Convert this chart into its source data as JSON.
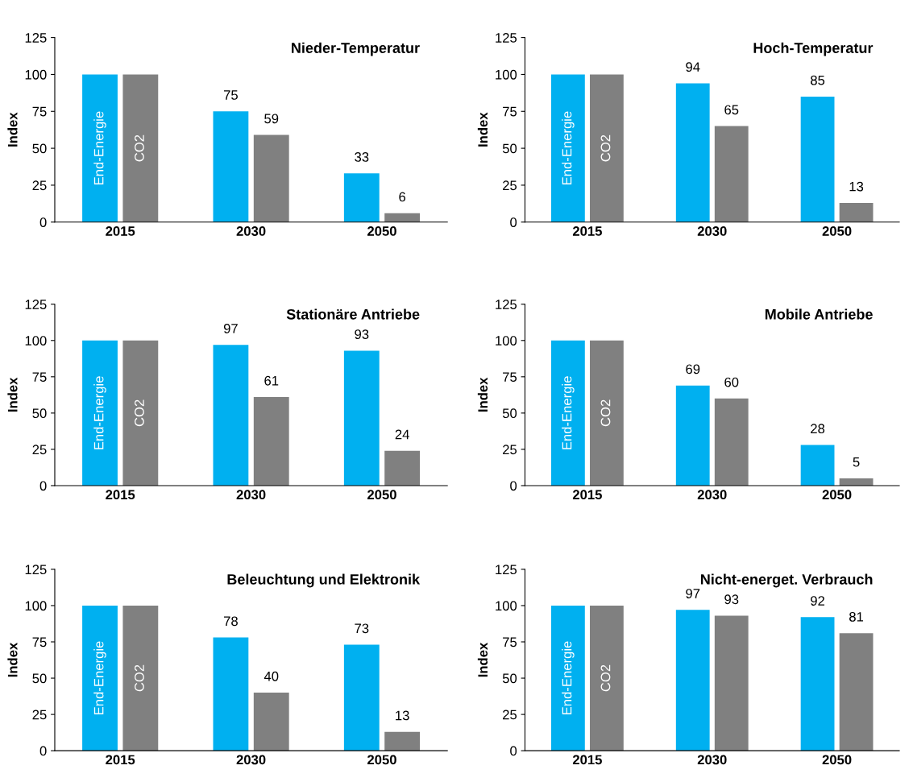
{
  "chart_data": [
    {
      "type": "bar",
      "title": "Nieder-Temperatur",
      "ylabel": "Index",
      "categories": [
        "2015",
        "2030",
        "2050"
      ],
      "ylim": [
        0,
        125
      ],
      "yticks": [
        0,
        25,
        50,
        75,
        100,
        125
      ],
      "grid": false,
      "legend": false,
      "series": [
        {
          "name": "End-Energie",
          "color": "#00b0f0",
          "values": [
            100,
            75,
            33
          ],
          "value_labels": [
            null,
            "75",
            "33"
          ]
        },
        {
          "name": "CO2",
          "color": "#808080",
          "values": [
            100,
            59,
            6
          ],
          "value_labels": [
            null,
            "59",
            "6"
          ]
        }
      ]
    },
    {
      "type": "bar",
      "title": "Hoch-Temperatur",
      "ylabel": "Index",
      "categories": [
        "2015",
        "2030",
        "2050"
      ],
      "ylim": [
        0,
        125
      ],
      "yticks": [
        0,
        25,
        50,
        75,
        100,
        125
      ],
      "grid": false,
      "legend": false,
      "series": [
        {
          "name": "End-Energie",
          "color": "#00b0f0",
          "values": [
            100,
            94,
            85
          ],
          "value_labels": [
            null,
            "94",
            "85"
          ]
        },
        {
          "name": "CO2",
          "color": "#808080",
          "values": [
            100,
            65,
            13
          ],
          "value_labels": [
            null,
            "65",
            "13"
          ]
        }
      ]
    },
    {
      "type": "bar",
      "title": "Stationäre Antriebe",
      "ylabel": "Index",
      "categories": [
        "2015",
        "2030",
        "2050"
      ],
      "ylim": [
        0,
        125
      ],
      "yticks": [
        0,
        25,
        50,
        75,
        100,
        125
      ],
      "grid": false,
      "legend": false,
      "series": [
        {
          "name": "End-Energie",
          "color": "#00b0f0",
          "values": [
            100,
            97,
            93
          ],
          "value_labels": [
            null,
            "97",
            "93"
          ]
        },
        {
          "name": "CO2",
          "color": "#808080",
          "values": [
            100,
            61,
            24
          ],
          "value_labels": [
            null,
            "61",
            "24"
          ]
        }
      ]
    },
    {
      "type": "bar",
      "title": "Mobile Antriebe",
      "ylabel": "Index",
      "categories": [
        "2015",
        "2030",
        "2050"
      ],
      "ylim": [
        0,
        125
      ],
      "yticks": [
        0,
        25,
        50,
        75,
        100,
        125
      ],
      "grid": false,
      "legend": false,
      "series": [
        {
          "name": "End-Energie",
          "color": "#00b0f0",
          "values": [
            100,
            69,
            28
          ],
          "value_labels": [
            null,
            "69",
            "28"
          ]
        },
        {
          "name": "CO2",
          "color": "#808080",
          "values": [
            100,
            60,
            5
          ],
          "value_labels": [
            null,
            "60",
            "5"
          ]
        }
      ]
    },
    {
      "type": "bar",
      "title": "Beleuchtung und Elektronik",
      "ylabel": "Index",
      "categories": [
        "2015",
        "2030",
        "2050"
      ],
      "ylim": [
        0,
        125
      ],
      "yticks": [
        0,
        25,
        50,
        75,
        100,
        125
      ],
      "grid": false,
      "legend": false,
      "series": [
        {
          "name": "End-Energie",
          "color": "#00b0f0",
          "values": [
            100,
            78,
            73
          ],
          "value_labels": [
            null,
            "78",
            "73"
          ]
        },
        {
          "name": "CO2",
          "color": "#808080",
          "values": [
            100,
            40,
            13
          ],
          "value_labels": [
            null,
            "40",
            "13"
          ]
        }
      ]
    },
    {
      "type": "bar",
      "title": "Nicht-energet. Verbrauch",
      "ylabel": "Index",
      "categories": [
        "2015",
        "2030",
        "2050"
      ],
      "ylim": [
        0,
        125
      ],
      "yticks": [
        0,
        25,
        50,
        75,
        100,
        125
      ],
      "grid": false,
      "legend": false,
      "series": [
        {
          "name": "End-Energie",
          "color": "#00b0f0",
          "values": [
            100,
            97,
            92
          ],
          "value_labels": [
            null,
            "97",
            "92"
          ]
        },
        {
          "name": "CO2",
          "color": "#808080",
          "values": [
            100,
            93,
            81
          ],
          "value_labels": [
            null,
            "93",
            "81"
          ]
        }
      ]
    }
  ]
}
